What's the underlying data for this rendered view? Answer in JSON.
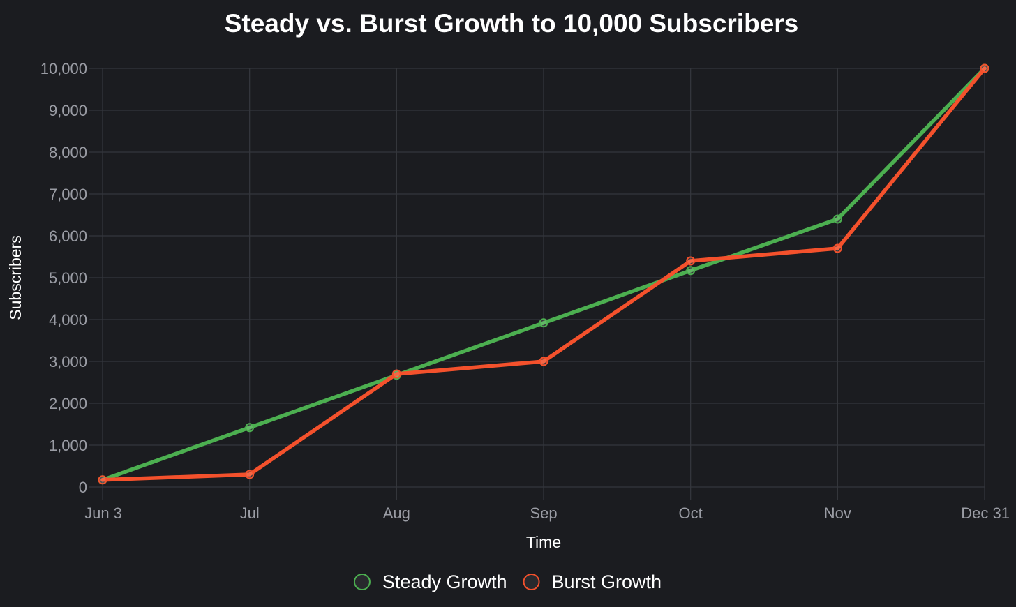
{
  "chart_data": {
    "type": "line",
    "title": "Steady vs. Burst Growth to 10,000 Subscribers",
    "xlabel": "Time",
    "ylabel": "Subscribers",
    "categories": [
      "Jun 3",
      "Jul",
      "Aug",
      "Sep",
      "Oct",
      "Nov",
      "Dec 31"
    ],
    "y_tick_labels": [
      "0",
      "1,000",
      "2,000",
      "3,000",
      "4,000",
      "5,000",
      "6,000",
      "7,000",
      "8,000",
      "9,000",
      "10,000"
    ],
    "ylim": [
      0,
      10000
    ],
    "grid": true,
    "legend_position": "bottom",
    "series": [
      {
        "name": "Steady Growth",
        "color": "#4caf50",
        "values": [
          170,
          1420,
          2670,
          3920,
          5170,
          6400,
          10000
        ]
      },
      {
        "name": "Burst Growth",
        "color": "#f4512c",
        "values": [
          170,
          300,
          2700,
          3000,
          5400,
          5700,
          10000
        ]
      }
    ]
  }
}
